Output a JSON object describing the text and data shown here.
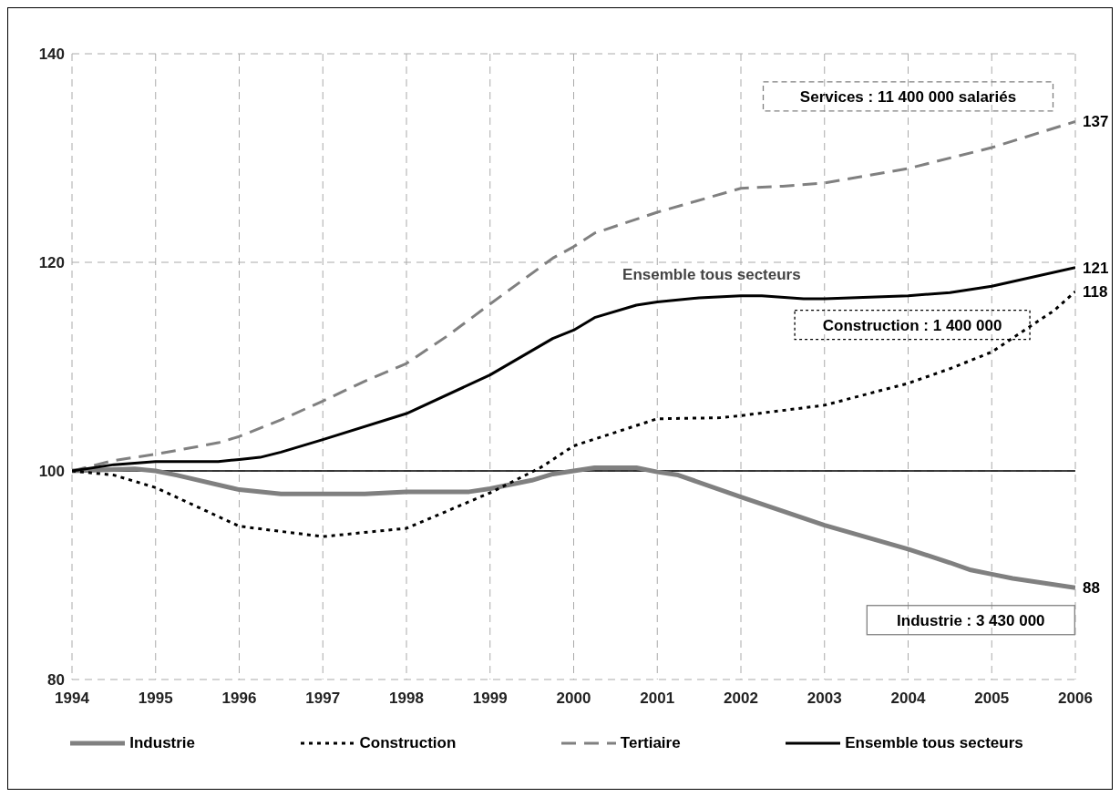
{
  "chart_data": {
    "type": "line",
    "xlim": [
      1994,
      2006
    ],
    "xticks": [
      1994,
      1995,
      1996,
      1997,
      1998,
      1999,
      2000,
      2001,
      2002,
      2003,
      2004,
      2005,
      2006
    ],
    "ylim": [
      80,
      140
    ],
    "yticks": [
      80,
      100,
      120,
      140
    ],
    "grid": true,
    "legend": "bottom",
    "marker": "none",
    "ref_lines": [
      {
        "axis": "y",
        "value": 100,
        "color": "#000000",
        "line_style": "solid"
      }
    ],
    "series": [
      {
        "name": "Industrie",
        "color": "#808080",
        "line_style": "solid",
        "x": [
          1994,
          1994.75,
          1995,
          1995.25,
          1996,
          1996.5,
          1997.5,
          1998,
          1998.75,
          1999,
          1999.5,
          1999.75,
          2000.25,
          2000.75,
          2001,
          2001.25,
          2002,
          2003,
          2004,
          2004.5,
          2004.75,
          2005,
          2005.25,
          2006
        ],
        "values": [
          100,
          100.2,
          100,
          99.6,
          98.2,
          97.8,
          97.8,
          98,
          98,
          98.3,
          99.1,
          99.7,
          100.3,
          100.3,
          99.9,
          99.6,
          97.5,
          94.8,
          92.5,
          91.2,
          90.5,
          90.1,
          89.7,
          88.8
        ]
      },
      {
        "name": "Construction",
        "color": "#000000",
        "line_style": "dotted",
        "x": [
          1994,
          1994.5,
          1995,
          1996,
          1997,
          1998,
          1999,
          1999.6,
          2000,
          2001,
          2001.75,
          2002,
          2003,
          2004,
          2004.5,
          2005,
          2005.75,
          2006
        ],
        "values": [
          100,
          99.6,
          98.4,
          94.7,
          93.7,
          94.5,
          97.9,
          100.3,
          102.4,
          105,
          105.1,
          105.3,
          106.3,
          108.4,
          109.8,
          111.4,
          115.4,
          117.2
        ]
      },
      {
        "name": "Tertiaire",
        "color": "#808080",
        "line_style": "dashed",
        "x": [
          1994,
          1994.5,
          1995,
          1995.75,
          1996,
          1996.5,
          1997,
          1997.5,
          1998,
          1998.5,
          1999,
          1999.75,
          2000,
          2000.25,
          2001,
          2002,
          2002.5,
          2003,
          2004,
          2005,
          2006
        ],
        "values": [
          100,
          101,
          101.6,
          102.7,
          103.3,
          104.9,
          106.7,
          108.6,
          110.3,
          113,
          116,
          120.4,
          121.5,
          122.8,
          124.8,
          127.1,
          127.3,
          127.6,
          129,
          131,
          133.5
        ]
      },
      {
        "name": "Ensemble tous secteurs",
        "color": "#000000",
        "line_style": "solid",
        "x": [
          1994,
          1994.5,
          1995,
          1995.75,
          1996,
          1996.25,
          1996.5,
          1997,
          1998,
          1999,
          1999.75,
          2000,
          2000.25,
          2000.75,
          2001,
          2001.5,
          2002,
          2002.25,
          2002.75,
          2003,
          2004,
          2004.5,
          2005,
          2006
        ],
        "values": [
          100,
          100.6,
          100.9,
          100.9,
          101.1,
          101.3,
          101.8,
          103,
          105.5,
          109.2,
          112.7,
          113.5,
          114.7,
          115.9,
          116.2,
          116.6,
          116.8,
          116.8,
          116.5,
          116.5,
          116.8,
          117.1,
          117.7,
          119.5
        ]
      }
    ],
    "annotations": [
      "Services : 11 400 000 salariés",
      "Construction : 1 400 000",
      "Industrie : 3 430 000",
      "Ensemble tous secteurs",
      "137",
      "121",
      "118",
      "88"
    ]
  }
}
